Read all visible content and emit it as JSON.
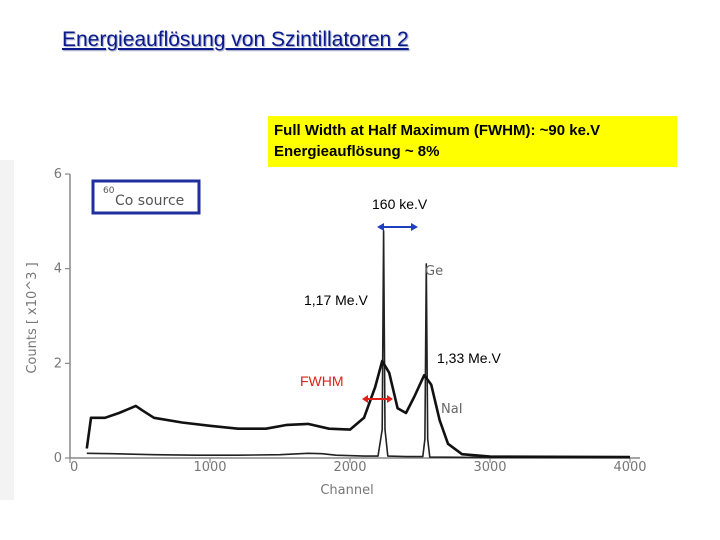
{
  "slide": {
    "title": "Energieauflösung von Szintillatoren 2",
    "info_lines": [
      "Full Width at Half Maximum (FWHM): ~90 ke.V",
      "Energieauflösung ~ 8%"
    ]
  },
  "annotations": {
    "peak_width": "160 ke.V",
    "peak1": "1,17 Me.V",
    "peak2": "1,33 Me.V",
    "fwhm": "FWHM"
  },
  "chart_data": {
    "type": "line",
    "xlabel": "Channel",
    "ylabel": "Counts [ x10^3 ]",
    "xlim": [
      0,
      4000
    ],
    "ylim": [
      0,
      6
    ],
    "x_ticks": [
      0,
      1000,
      2000,
      3000,
      4000
    ],
    "y_ticks": [
      0,
      2,
      4,
      6
    ],
    "source_label": "60Co source",
    "source_label_parts": {
      "mass": "60",
      "element": "Co source"
    },
    "series": [
      {
        "name": "Ge",
        "points": [
          [
            120,
            0.1
          ],
          [
            300,
            0.09
          ],
          [
            600,
            0.07
          ],
          [
            900,
            0.06
          ],
          [
            1200,
            0.06
          ],
          [
            1500,
            0.07
          ],
          [
            1700,
            0.1
          ],
          [
            1800,
            0.09
          ],
          [
            1900,
            0.06
          ],
          [
            2100,
            0.04
          ],
          [
            2200,
            0.04
          ],
          [
            2230,
            0.6
          ],
          [
            2240,
            4.8
          ],
          [
            2250,
            0.6
          ],
          [
            2270,
            0.04
          ],
          [
            2400,
            0.03
          ],
          [
            2520,
            0.03
          ],
          [
            2535,
            0.4
          ],
          [
            2545,
            4.1
          ],
          [
            2555,
            0.4
          ],
          [
            2570,
            0.02
          ],
          [
            3000,
            0.01
          ],
          [
            4000,
            0.01
          ]
        ]
      },
      {
        "name": "NaI",
        "points": [
          [
            120,
            0.2
          ],
          [
            150,
            0.85
          ],
          [
            250,
            0.85
          ],
          [
            350,
            0.95
          ],
          [
            430,
            1.05
          ],
          [
            470,
            1.1
          ],
          [
            520,
            1.0
          ],
          [
            600,
            0.85
          ],
          [
            800,
            0.75
          ],
          [
            1000,
            0.68
          ],
          [
            1200,
            0.62
          ],
          [
            1400,
            0.62
          ],
          [
            1550,
            0.7
          ],
          [
            1700,
            0.72
          ],
          [
            1850,
            0.62
          ],
          [
            2000,
            0.6
          ],
          [
            2100,
            0.85
          ],
          [
            2180,
            1.5
          ],
          [
            2230,
            2.05
          ],
          [
            2280,
            1.8
          ],
          [
            2340,
            1.05
          ],
          [
            2400,
            0.95
          ],
          [
            2460,
            1.3
          ],
          [
            2530,
            1.75
          ],
          [
            2580,
            1.55
          ],
          [
            2640,
            0.8
          ],
          [
            2700,
            0.3
          ],
          [
            2800,
            0.08
          ],
          [
            3000,
            0.03
          ],
          [
            4000,
            0.02
          ]
        ]
      }
    ]
  },
  "colors": {
    "title": "#0a1a8c",
    "infobox_bg": "#ffff00",
    "arrow_blue": "#1f3fbf",
    "fwhm_red": "#e0201a",
    "source_box": "#1f2f9f"
  }
}
